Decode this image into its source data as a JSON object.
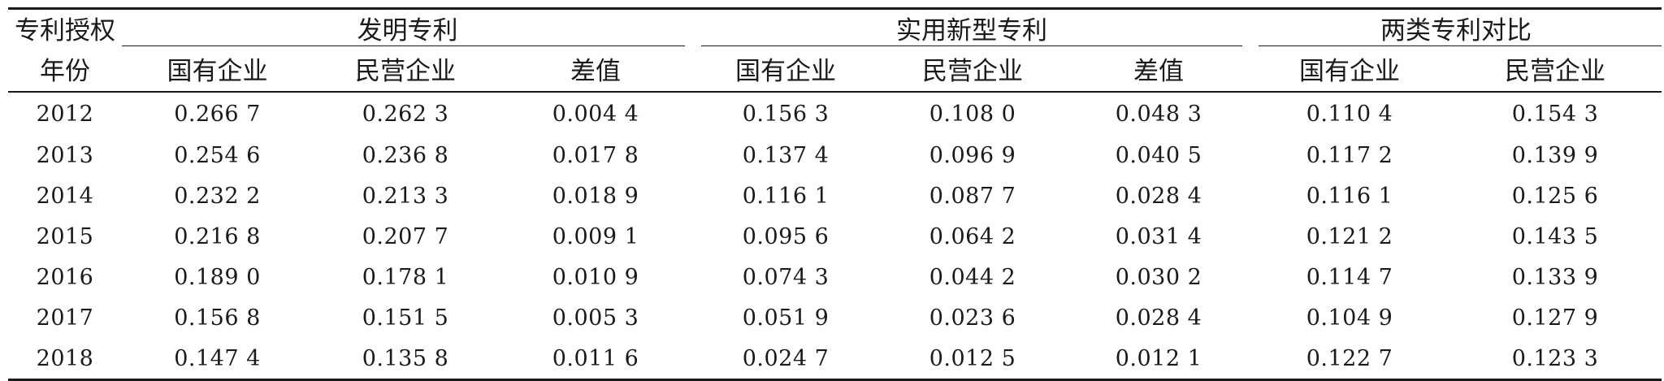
{
  "table": {
    "header": {
      "row1": {
        "stub": "专利授权",
        "groups": [
          "发明专利",
          "实用新型专利",
          "两类专利对比"
        ]
      },
      "row2": {
        "stub": "年份",
        "columns": [
          "国有企业",
          "民营企业",
          "差值",
          "国有企业",
          "民营企业",
          "差值",
          "国有企业",
          "民营企业"
        ]
      }
    },
    "rows": [
      {
        "year": "2012",
        "cells": [
          "0.266 7",
          "0.262 3",
          "0.004 4",
          "0.156 3",
          "0.108 0",
          "0.048 3",
          "0.110 4",
          "0.154 3"
        ]
      },
      {
        "year": "2013",
        "cells": [
          "0.254 6",
          "0.236 8",
          "0.017 8",
          "0.137 4",
          "0.096 9",
          "0.040 5",
          "0.117 2",
          "0.139 9"
        ]
      },
      {
        "year": "2014",
        "cells": [
          "0.232 2",
          "0.213 3",
          "0.018 9",
          "0.116 1",
          "0.087 7",
          "0.028 4",
          "0.116 1",
          "0.125 6"
        ]
      },
      {
        "year": "2015",
        "cells": [
          "0.216 8",
          "0.207 7",
          "0.009 1",
          "0.095 6",
          "0.064 2",
          "0.031 4",
          "0.121 2",
          "0.143 5"
        ]
      },
      {
        "year": "2016",
        "cells": [
          "0.189 0",
          "0.178 1",
          "0.010 9",
          "0.074 3",
          "0.044 2",
          "0.030 2",
          "0.114 7",
          "0.133 9"
        ]
      },
      {
        "year": "2017",
        "cells": [
          "0.156 8",
          "0.151 5",
          "0.005 3",
          "0.051 9",
          "0.023 6",
          "0.028 4",
          "0.104 9",
          "0.127 9"
        ]
      },
      {
        "year": "2018",
        "cells": [
          "0.147 4",
          "0.135 8",
          "0.011 6",
          "0.024 7",
          "0.012 5",
          "0.012 1",
          "0.122 7",
          "0.123 3"
        ]
      }
    ]
  }
}
